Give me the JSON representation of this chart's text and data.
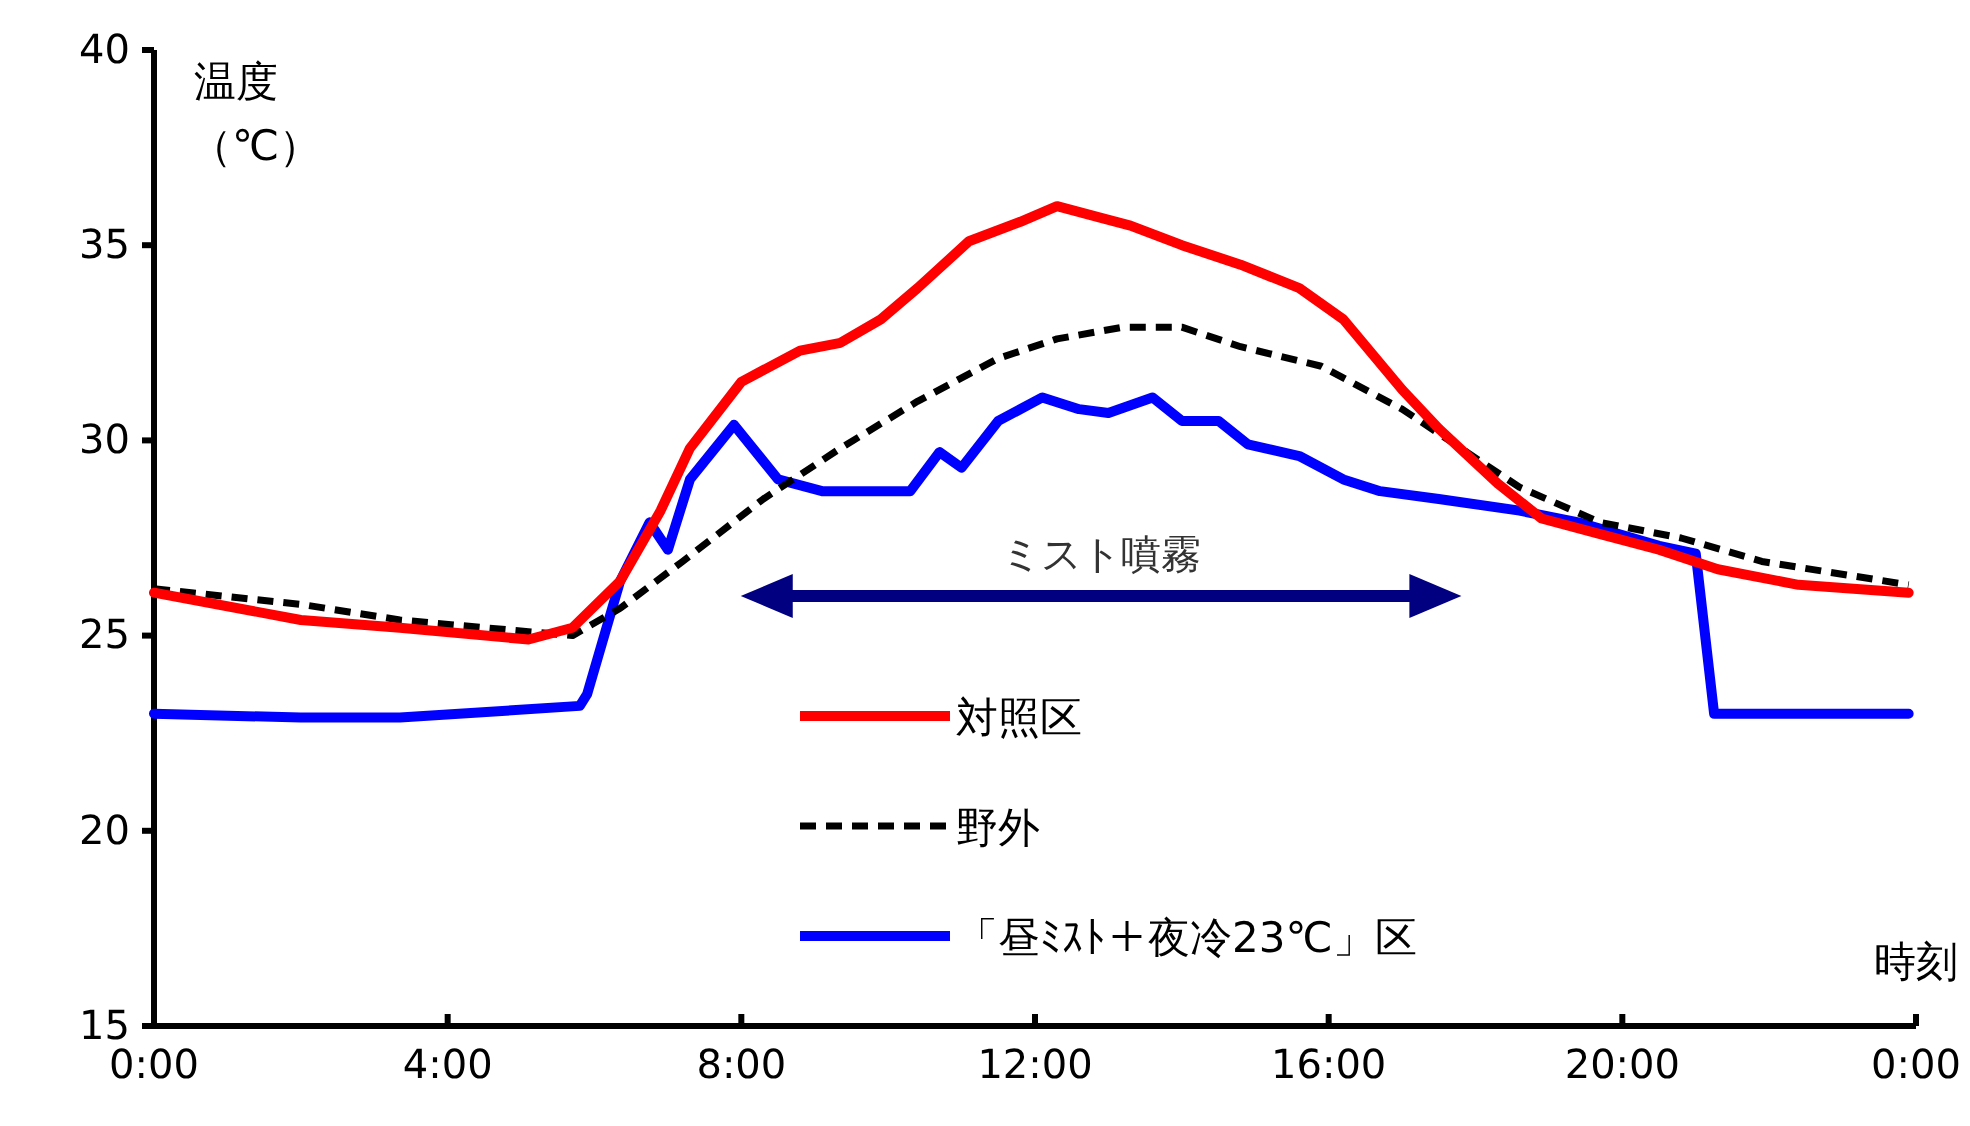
{
  "chart_data": {
    "type": "line",
    "ylabel": "温度",
    "annotations": [
      "（℃）",
      "ミスト噴霧"
    ],
    "xlabel": "時刻",
    "xlim": [
      0,
      24
    ],
    "xticks": [
      {
        "value": 0,
        "label": "0:00"
      },
      {
        "value": 4,
        "label": "4:00"
      },
      {
        "value": 8,
        "label": "8:00"
      },
      {
        "value": 12,
        "label": "12:00"
      },
      {
        "value": 16,
        "label": "16:00"
      },
      {
        "value": 20,
        "label": "20:00"
      },
      {
        "value": 24,
        "label": "0:00"
      }
    ],
    "ylim": [
      15,
      40
    ],
    "yticks": [
      15,
      20,
      25,
      30,
      35,
      40
    ],
    "grid": false,
    "legend": "bottom",
    "marker": "none",
    "series": [
      {
        "name": "対照区",
        "color": "#ff0000",
        "line_style": "solid",
        "x": [
          0,
          2,
          3.35,
          5.1,
          5.7,
          6.35,
          6.9,
          7.3,
          8.0,
          8.8,
          9.35,
          9.9,
          10.4,
          11.1,
          11.8,
          12.3,
          12.9,
          13.3,
          14.0,
          14.8,
          15.6,
          16.2,
          17.0,
          17.5,
          18.3,
          18.9,
          19.7,
          20.5,
          21.3,
          22.4,
          23.9
        ],
        "values": [
          26.1,
          25.4,
          25.2,
          24.9,
          25.2,
          26.4,
          28.2,
          29.8,
          31.5,
          32.3,
          32.5,
          33.1,
          33.9,
          35.1,
          35.6,
          36.0,
          35.7,
          35.5,
          35.0,
          34.5,
          33.9,
          33.1,
          31.3,
          30.3,
          28.9,
          28.0,
          27.6,
          27.2,
          26.7,
          26.3,
          26.1
        ]
      },
      {
        "name": "野外",
        "color": "#000000",
        "line_style": "dashed",
        "x": [
          0,
          2,
          3.35,
          5.1,
          5.7,
          6.35,
          7.2,
          8.3,
          9.35,
          10.4,
          11.5,
          12.3,
          13.2,
          14.0,
          14.8,
          15.9,
          17.0,
          17.8,
          18.6,
          19.7,
          20.8,
          21.9,
          23.9
        ],
        "values": [
          26.2,
          25.8,
          25.4,
          25.1,
          25.0,
          25.7,
          26.9,
          28.5,
          29.8,
          31.0,
          32.1,
          32.6,
          32.9,
          32.9,
          32.4,
          31.9,
          30.8,
          29.8,
          28.8,
          27.9,
          27.5,
          26.9,
          26.3
        ]
      },
      {
        "name": "「昼ﾐｽﾄ＋夜冷23℃」区",
        "color": "#0000ff",
        "line_style": "solid",
        "x": [
          0,
          2,
          3.35,
          5.8,
          5.9,
          6.35,
          6.75,
          7.0,
          7.3,
          7.9,
          8.5,
          9.1,
          9.9,
          10.3,
          10.7,
          11.0,
          11.5,
          12.1,
          12.6,
          13.0,
          13.6,
          14.0,
          14.5,
          14.9,
          15.6,
          16.2,
          16.7,
          17.5,
          18.6,
          19.4,
          20.5,
          21.0,
          21.25,
          21.9,
          23.9
        ],
        "values": [
          23.0,
          22.9,
          22.9,
          23.2,
          23.5,
          26.4,
          27.9,
          27.2,
          29.0,
          30.4,
          29.0,
          28.7,
          28.7,
          28.7,
          29.7,
          29.3,
          30.5,
          31.1,
          30.8,
          30.7,
          31.1,
          30.5,
          30.5,
          29.9,
          29.6,
          29.0,
          28.7,
          28.5,
          28.2,
          27.9,
          27.3,
          27.1,
          23.0,
          23.0,
          23.0
        ]
      }
    ]
  }
}
